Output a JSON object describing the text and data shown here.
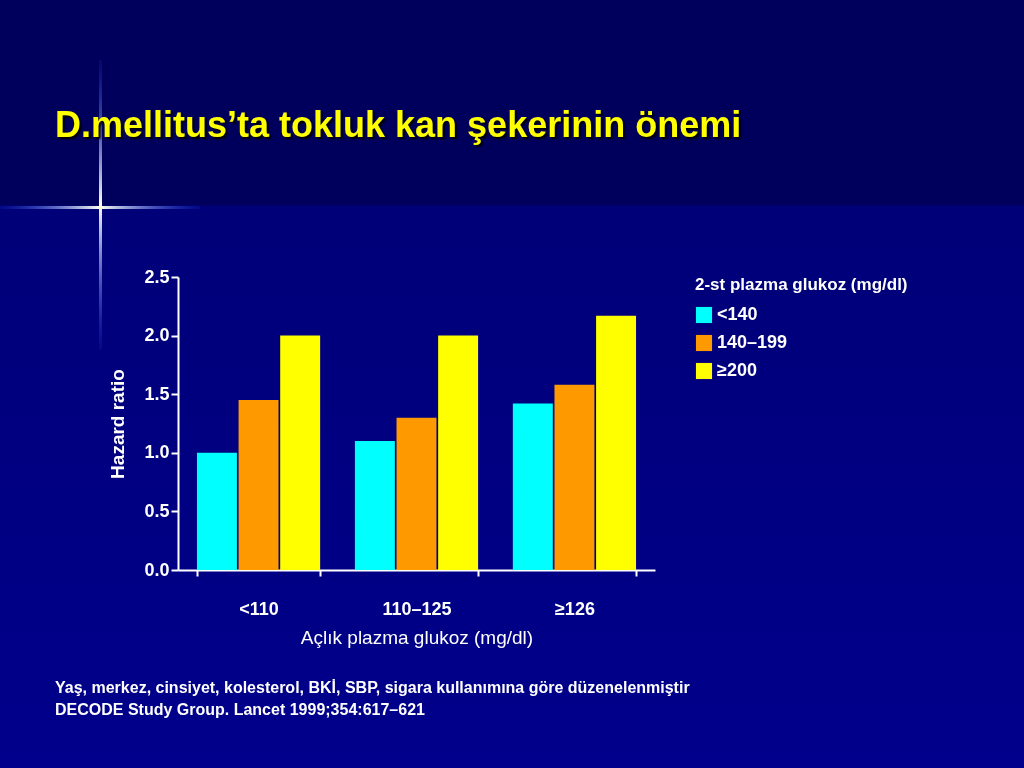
{
  "chart_data": {
    "type": "bar",
    "title": "D.mellitus’ta tokluk kan şekerinin önemi",
    "xlabel": "Açlık plazma glukoz (mg/dl)",
    "ylabel": "Hazard ratio",
    "legend_title": "2-st plazma glukoz (mg/dl)",
    "legend": "right",
    "categories": [
      "<110",
      "110–125",
      "≥126"
    ],
    "series": [
      {
        "name": "<140",
        "color": "#00ffff",
        "values": [
          1.0,
          1.1,
          1.42
        ]
      },
      {
        "name": "140–199",
        "color": "#ff9900",
        "values": [
          1.45,
          1.3,
          1.58
        ]
      },
      {
        "name": "≥200",
        "color": "#ffff00",
        "values": [
          2.0,
          2.0,
          2.17
        ]
      }
    ],
    "ylim": [
      0,
      2.5
    ],
    "yticks": [
      {
        "value": 0,
        "label": "0.0"
      },
      0.5,
      {
        "value": 1,
        "label": "1.0"
      },
      1.5,
      {
        "value": 2,
        "label": "2.0"
      },
      2.5
    ],
    "annotations": [
      "Yaş, merkez, cinsiyet, kolesterol, BKİ, SBP, sigara kullanımına göre düzenelenmiştir",
      "DECODE Study Group. Lancet 1999;354:617–621"
    ]
  }
}
